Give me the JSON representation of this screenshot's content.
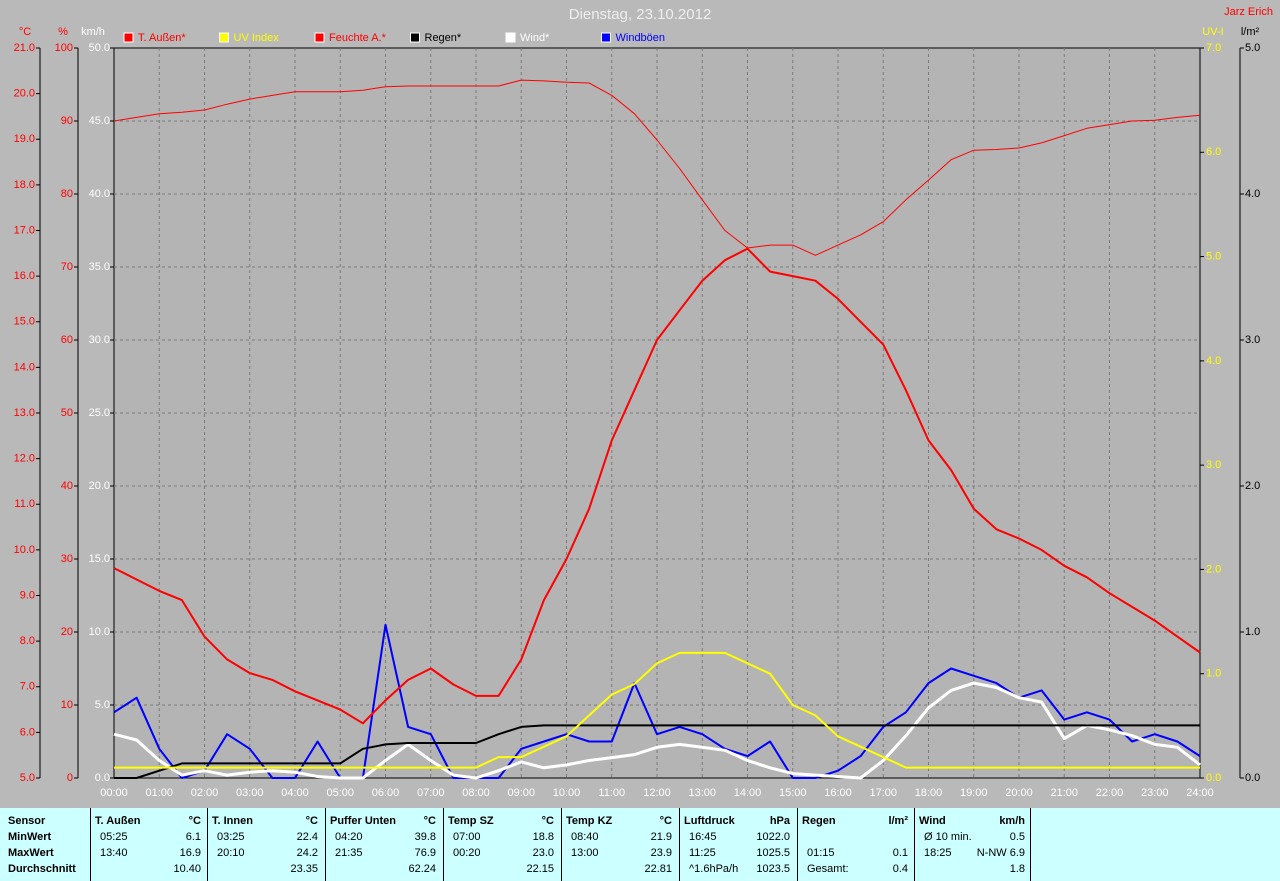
{
  "chart_data": {
    "type": "line",
    "title": "Dienstag, 23.10.2012",
    "author": "Jarz Erich",
    "grid": true,
    "x": [
      0,
      0.5,
      1,
      1.5,
      2,
      2.5,
      3,
      3.5,
      4,
      4.5,
      5,
      5.5,
      6,
      6.5,
      7,
      7.5,
      8,
      8.5,
      9,
      9.5,
      10,
      10.5,
      11,
      11.5,
      12,
      12.5,
      13,
      13.5,
      14,
      14.5,
      15,
      15.5,
      16,
      16.5,
      17,
      17.5,
      18,
      18.5,
      19,
      19.5,
      20,
      20.5,
      21,
      21.5,
      22,
      22.5,
      23,
      23.5,
      24
    ],
    "xlim": [
      0,
      24
    ],
    "xticks": [
      {
        "value": 0,
        "label": "00:00"
      },
      {
        "value": 1,
        "label": "01:00"
      },
      {
        "value": 2,
        "label": "02:00"
      },
      {
        "value": 3,
        "label": "03:00"
      },
      {
        "value": 4,
        "label": "04:00"
      },
      {
        "value": 5,
        "label": "05:00"
      },
      {
        "value": 6,
        "label": "06:00"
      },
      {
        "value": 7,
        "label": "07:00"
      },
      {
        "value": 8,
        "label": "08:00"
      },
      {
        "value": 9,
        "label": "09:00"
      },
      {
        "value": 10,
        "label": "10:00"
      },
      {
        "value": 11,
        "label": "11:00"
      },
      {
        "value": 12,
        "label": "12:00"
      },
      {
        "value": 13,
        "label": "13:00"
      },
      {
        "value": 14,
        "label": "14:00"
      },
      {
        "value": 15,
        "label": "15:00"
      },
      {
        "value": 16,
        "label": "16:00"
      },
      {
        "value": 17,
        "label": "17:00"
      },
      {
        "value": 18,
        "label": "18:00"
      },
      {
        "value": 19,
        "label": "19:00"
      },
      {
        "value": 20,
        "label": "20:00"
      },
      {
        "value": 21,
        "label": "21:00"
      },
      {
        "value": 22,
        "label": "22:00"
      },
      {
        "value": 23,
        "label": "23:00"
      },
      {
        "value": 24,
        "label": "24:00"
      }
    ],
    "axes": {
      "temp": {
        "label": "°C",
        "side": "left",
        "color": "#ff0000",
        "lim": [
          5,
          21
        ],
        "ticks": [
          {
            "value": 5,
            "label": "5.0"
          },
          {
            "value": 6,
            "label": "6.0"
          },
          {
            "value": 7,
            "label": "7.0"
          },
          {
            "value": 8,
            "label": "8.0"
          },
          {
            "value": 9,
            "label": "9.0"
          },
          {
            "value": 10,
            "label": "10.0"
          },
          {
            "value": 11,
            "label": "11.0"
          },
          {
            "value": 12,
            "label": "12.0"
          },
          {
            "value": 13,
            "label": "13.0"
          },
          {
            "value": 14,
            "label": "14.0"
          },
          {
            "value": 15,
            "label": "15.0"
          },
          {
            "value": 16,
            "label": "16.0"
          },
          {
            "value": 17,
            "label": "17.0"
          },
          {
            "value": 18,
            "label": "18.0"
          },
          {
            "value": 19,
            "label": "19.0"
          },
          {
            "value": 20,
            "label": "20.0"
          },
          {
            "value": 21,
            "label": "21.0"
          }
        ]
      },
      "humidity": {
        "label": "%",
        "side": "left",
        "color": "#ff0000",
        "lim": [
          0,
          100
        ],
        "ticks": [
          0,
          10,
          20,
          30,
          40,
          50,
          60,
          70,
          80,
          90,
          100
        ]
      },
      "wind": {
        "label": "km/h",
        "side": "left",
        "color": "#ffffff",
        "lim": [
          0,
          50
        ],
        "ticks": [
          {
            "value": 0,
            "label": "0.0"
          },
          {
            "value": 5,
            "label": "5.0"
          },
          {
            "value": 10,
            "label": "10.0"
          },
          {
            "value": 15,
            "label": "15.0"
          },
          {
            "value": 20,
            "label": "20.0"
          },
          {
            "value": 25,
            "label": "25.0"
          },
          {
            "value": 30,
            "label": "30.0"
          },
          {
            "value": 35,
            "label": "35.0"
          },
          {
            "value": 40,
            "label": "40.0"
          },
          {
            "value": 45,
            "label": "45.0"
          },
          {
            "value": 50,
            "label": "50.0"
          }
        ]
      },
      "uv": {
        "label": "UV-I",
        "side": "right",
        "color": "#ffff00",
        "lim": [
          0,
          7
        ],
        "ticks": [
          {
            "value": 0,
            "label": "0.0"
          },
          {
            "value": 1,
            "label": "1.0"
          },
          {
            "value": 2,
            "label": "2.0"
          },
          {
            "value": 3,
            "label": "3.0"
          },
          {
            "value": 4,
            "label": "4.0"
          },
          {
            "value": 5,
            "label": "5.0"
          },
          {
            "value": 6,
            "label": "6.0"
          },
          {
            "value": 7,
            "label": "7.0"
          }
        ]
      },
      "rain": {
        "label": "l/m²",
        "side": "right",
        "color": "#000000",
        "lim": [
          0,
          5
        ],
        "ticks": [
          {
            "value": 0,
            "label": "0.0"
          },
          {
            "value": 1,
            "label": "1.0"
          },
          {
            "value": 2,
            "label": "2.0"
          },
          {
            "value": 3,
            "label": "3.0"
          },
          {
            "value": 4,
            "label": "4.0"
          },
          {
            "value": 5,
            "label": "5.0"
          }
        ]
      }
    },
    "series": [
      {
        "name": "T. Außen*",
        "color": "#ff0000",
        "axis": "temp",
        "values": [
          9.6,
          9.35,
          9.1,
          8.9,
          8.1,
          7.6,
          7.3,
          7.15,
          6.9,
          6.7,
          6.5,
          6.2,
          6.7,
          7.15,
          7.4,
          7.05,
          6.8,
          6.8,
          7.6,
          8.9,
          9.8,
          10.9,
          12.4,
          13.5,
          14.6,
          15.25,
          15.9,
          16.35,
          16.6,
          16.1,
          16.0,
          15.9,
          15.5,
          15.0,
          14.5,
          13.5,
          12.4,
          11.75,
          10.9,
          10.45,
          10.25,
          10.0,
          9.65,
          9.4,
          9.05,
          8.75,
          8.45,
          8.1,
          7.75
        ]
      },
      {
        "name": "UV Index",
        "color": "#ffff00",
        "axis": "uv",
        "values": [
          0.1,
          0.1,
          0.1,
          0.1,
          0.1,
          0.1,
          0.1,
          0.1,
          0.1,
          0.1,
          0.1,
          0.1,
          0.1,
          0.1,
          0.1,
          0.1,
          0.1,
          0.2,
          0.2,
          0.3,
          0.4,
          0.6,
          0.8,
          0.9,
          1.1,
          1.2,
          1.2,
          1.2,
          1.1,
          1.0,
          0.7,
          0.6,
          0.4,
          0.3,
          0.2,
          0.1,
          0.1,
          0.1,
          0.1,
          0.1,
          0.1,
          0.1,
          0.1,
          0.1,
          0.1,
          0.1,
          0.1,
          0.1,
          0.1
        ]
      },
      {
        "name": "Feuchte A.*",
        "color": "#ff0000",
        "axis": "humidity",
        "values": [
          90,
          90.5,
          91,
          91.2,
          91.5,
          92.3,
          93,
          93.5,
          94,
          94,
          94,
          94.2,
          94.7,
          94.8,
          94.8,
          94.8,
          94.8,
          94.8,
          95.6,
          95.5,
          95.3,
          95.2,
          93.5,
          91,
          87.4,
          83.5,
          79.2,
          75,
          72.6,
          73,
          73,
          71.6,
          73,
          74.4,
          76.2,
          79.2,
          81.9,
          84.7,
          86,
          86.1,
          86.3,
          87,
          88,
          89,
          89.5,
          90,
          90.1,
          90.5,
          90.8
        ]
      },
      {
        "name": "Regen*",
        "color": "#000000",
        "axis": "rain",
        "values": [
          0,
          0,
          0.05,
          0.1,
          0.1,
          0.1,
          0.1,
          0.1,
          0.1,
          0.1,
          0.1,
          0.2,
          0.23,
          0.24,
          0.24,
          0.24,
          0.24,
          0.3,
          0.35,
          0.36,
          0.36,
          0.36,
          0.36,
          0.36,
          0.36,
          0.36,
          0.36,
          0.36,
          0.36,
          0.36,
          0.36,
          0.36,
          0.36,
          0.36,
          0.36,
          0.36,
          0.36,
          0.36,
          0.36,
          0.36,
          0.36,
          0.36,
          0.36,
          0.36,
          0.36,
          0.36,
          0.36,
          0.36,
          0.36
        ]
      },
      {
        "name": "Wind*",
        "color": "#ffffff",
        "axis": "wind",
        "values": [
          3.0,
          2.6,
          1.2,
          0.2,
          0.5,
          0.2,
          0.4,
          0.5,
          0.4,
          0.1,
          0,
          0,
          1.2,
          2.3,
          1.2,
          0.2,
          0,
          0.5,
          1.1,
          0.7,
          0.9,
          1.2,
          1.4,
          1.6,
          2.1,
          2.3,
          2.1,
          1.9,
          1.2,
          0.7,
          0.3,
          0.2,
          0.1,
          0,
          1.2,
          2.9,
          4.8,
          6.0,
          6.5,
          6.2,
          5.5,
          5.2,
          2.7,
          3.6,
          3.3,
          2.9,
          2.3,
          2.1,
          0.9
        ]
      },
      {
        "name": "Windböen",
        "color": "#0000ff",
        "axis": "wind",
        "values": [
          4.5,
          5.5,
          2.0,
          0,
          0.5,
          3.0,
          2.0,
          0,
          0,
          2.5,
          0,
          0,
          10.5,
          3.5,
          3.0,
          0,
          0,
          0,
          2.0,
          2.5,
          3.0,
          2.5,
          2.5,
          6.5,
          3.0,
          3.5,
          3.0,
          2.0,
          1.5,
          2.5,
          0,
          0,
          0.5,
          1.5,
          3.5,
          4.5,
          6.5,
          7.5,
          7.0,
          6.5,
          5.5,
          6.0,
          4.0,
          4.5,
          4.0,
          2.5,
          3.0,
          2.5,
          1.5
        ]
      }
    ]
  },
  "table": {
    "row_labels": [
      "Sensor",
      "MinWert",
      "MaxWert",
      "Durchschnitt"
    ],
    "groups": [
      {
        "name": "T. Außen",
        "unit": "°C",
        "rows": [
          [
            "05:25",
            "6.1"
          ],
          [
            "13:40",
            "16.9"
          ],
          [
            null,
            "10.40"
          ]
        ]
      },
      {
        "name": "T. Innen",
        "unit": "°C",
        "rows": [
          [
            "03:25",
            "22.4"
          ],
          [
            "20:10",
            "24.2"
          ],
          [
            null,
            "23.35"
          ]
        ]
      },
      {
        "name": "Puffer Unten",
        "unit": "°C",
        "rows": [
          [
            "04:20",
            "39.8"
          ],
          [
            "21:35",
            "76.9"
          ],
          [
            null,
            "62.24"
          ]
        ]
      },
      {
        "name": "Temp SZ",
        "unit": "°C",
        "rows": [
          [
            "07:00",
            "18.8"
          ],
          [
            "00:20",
            "23.0"
          ],
          [
            null,
            "22.15"
          ]
        ]
      },
      {
        "name": "Temp KZ",
        "unit": "°C",
        "rows": [
          [
            "08:40",
            "21.9"
          ],
          [
            "13:00",
            "23.9"
          ],
          [
            null,
            "22.81"
          ]
        ]
      },
      {
        "name": "Luftdruck",
        "unit": "hPa",
        "rows": [
          [
            "16:45",
            "1022.0"
          ],
          [
            "11:25",
            "1025.5"
          ],
          [
            "^1.6hPa/h",
            "1023.5"
          ]
        ]
      },
      {
        "name": "Regen",
        "unit": "l/m²",
        "rows": [
          [
            null,
            null
          ],
          [
            "01:15",
            "0.1"
          ],
          [
            "Gesamt:",
            "0.4"
          ]
        ]
      },
      {
        "name": "Wind",
        "unit": "km/h",
        "rows": [
          [
            "Ø 10 min.",
            "0.5"
          ],
          [
            "18:25",
            "N-NW 6.9"
          ],
          [
            null,
            "1.8"
          ]
        ]
      }
    ]
  }
}
